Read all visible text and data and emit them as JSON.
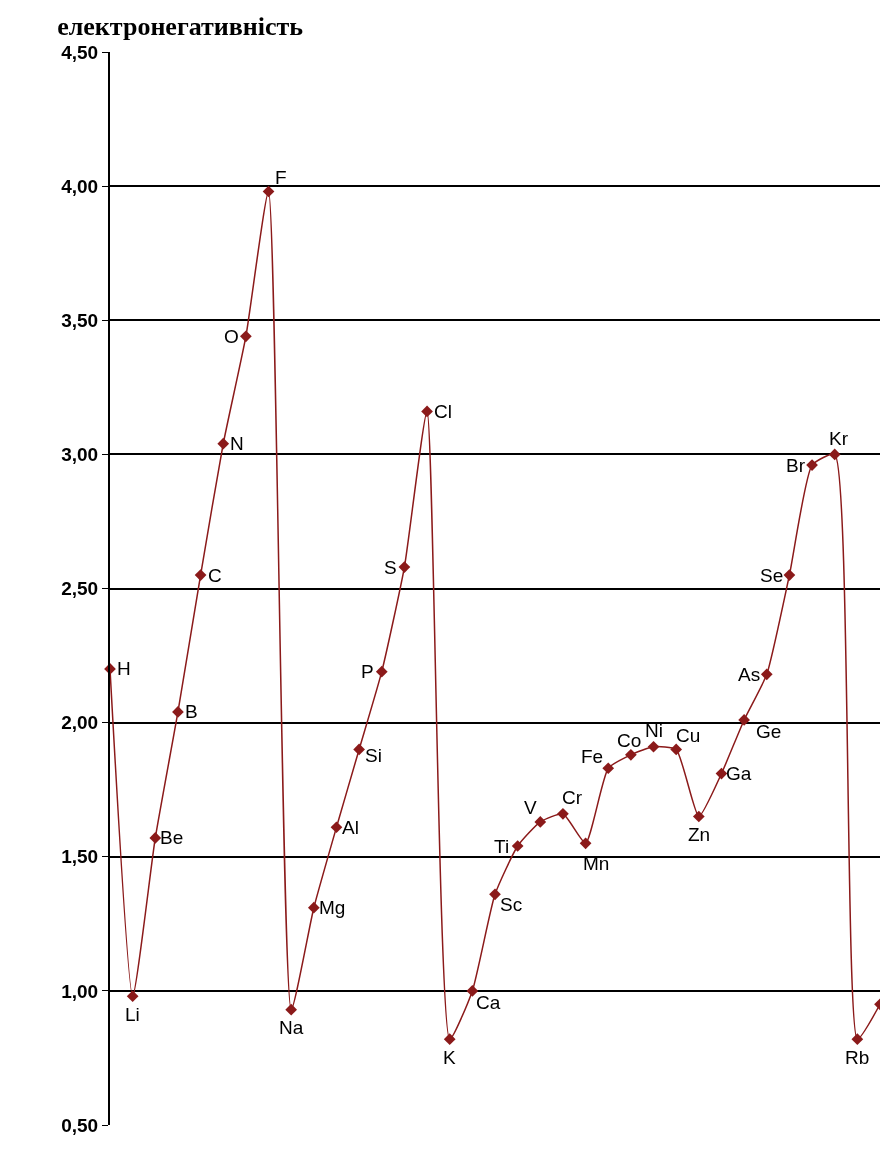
{
  "chart_data": {
    "type": "line",
    "title": "електронегативність",
    "categories": [
      null,
      null,
      null,
      null,
      null,
      null,
      null,
      null,
      null,
      null,
      null,
      null,
      null,
      null,
      null,
      null,
      null,
      null,
      null,
      null,
      null,
      null,
      null,
      null,
      null,
      null,
      null,
      null,
      null,
      null,
      null,
      null,
      null,
      null,
      null
    ],
    "series": [
      {
        "color": "#8b1a1a",
        "values": [
          2.2,
          0.98,
          1.57,
          2.04,
          2.55,
          3.04,
          3.44,
          3.98,
          0.93,
          1.31,
          1.61,
          1.9,
          2.19,
          2.58,
          3.16,
          0.82,
          1.0,
          1.36,
          1.54,
          1.63,
          1.66,
          1.55,
          1.83,
          1.88,
          1.91,
          1.9,
          1.65,
          1.81,
          2.01,
          2.18,
          2.55,
          2.96,
          3.0,
          0.82,
          0.95
        ]
      }
    ],
    "annotations": [
      "H",
      "Li",
      "Be",
      "B",
      "C",
      "N",
      "O",
      "F",
      "Na",
      "Mg",
      "Al",
      "Si",
      "P",
      "S",
      "Cl",
      "K",
      "Ca",
      "Sc",
      "Ti",
      "V",
      "Cr",
      "Mn",
      "Fe",
      "Co",
      "Ni",
      "Cu",
      "Zn",
      "Ga",
      "Ge",
      "As",
      "Se",
      "Br",
      "Kr",
      "Rb"
    ],
    "ylim": [
      0.5,
      4.5
    ],
    "yticks": [
      {
        "value": 0.5,
        "label": "0,50"
      },
      {
        "value": 1,
        "label": "1,00"
      },
      {
        "value": 1.5,
        "label": "1,50"
      },
      {
        "value": 2,
        "label": "2,00"
      },
      {
        "value": 2.5,
        "label": "2,50"
      },
      {
        "value": 3,
        "label": "3,00"
      },
      {
        "value": 3.5,
        "label": "3,50"
      },
      {
        "value": 4,
        "label": "4,00"
      },
      {
        "value": 4.5,
        "label": "4,50"
      }
    ],
    "grid": "y",
    "tick_labels": "y",
    "marker": "diamond",
    "line_style": "solid"
  }
}
